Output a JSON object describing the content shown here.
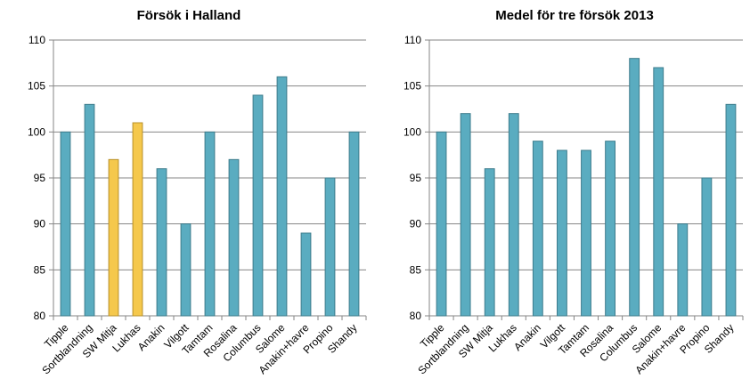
{
  "chart_data": [
    {
      "type": "bar",
      "title": "Försök i Halland",
      "categories": [
        "Tipple",
        "Sortblandning",
        "SW Mitja",
        "Lukhas",
        "Anakin",
        "Vilgott",
        "Tamtam",
        "Rosalina",
        "Columbus",
        "Salome",
        "Anakin+havre",
        "Propino",
        "Shandy"
      ],
      "values": [
        100,
        103,
        97,
        101,
        96,
        90,
        100,
        97,
        104,
        106,
        89,
        95,
        100
      ],
      "highlight": [
        false,
        false,
        true,
        true,
        false,
        false,
        false,
        false,
        false,
        false,
        false,
        false,
        false
      ],
      "ylim": [
        80,
        110
      ],
      "yticks": [
        "80",
        "85",
        "90",
        "95",
        "100",
        "105",
        "110"
      ],
      "grid": true,
      "colors": {
        "bar": "#5aacc0",
        "highlight": "#f5c84c"
      }
    },
    {
      "type": "bar",
      "title": "Medel för tre försök 2013",
      "categories": [
        "Tipple",
        "Sortblandning",
        "SW Mitja",
        "Lukhas",
        "Anakin",
        "Vilgott",
        "Tamtam",
        "Rosalina",
        "Columbus",
        "Salome",
        "Anakin+havre",
        "Propino",
        "Shandy"
      ],
      "values": [
        100,
        102,
        96,
        102,
        99,
        98,
        98,
        99,
        108,
        107,
        90,
        95,
        103
      ],
      "highlight": [
        false,
        false,
        false,
        false,
        false,
        false,
        false,
        false,
        false,
        false,
        false,
        false,
        false
      ],
      "ylim": [
        80,
        110
      ],
      "yticks": [
        "80",
        "85",
        "90",
        "95",
        "100",
        "105",
        "110"
      ],
      "grid": true,
      "colors": {
        "bar": "#5aacc0",
        "highlight": "#f5c84c"
      }
    }
  ]
}
